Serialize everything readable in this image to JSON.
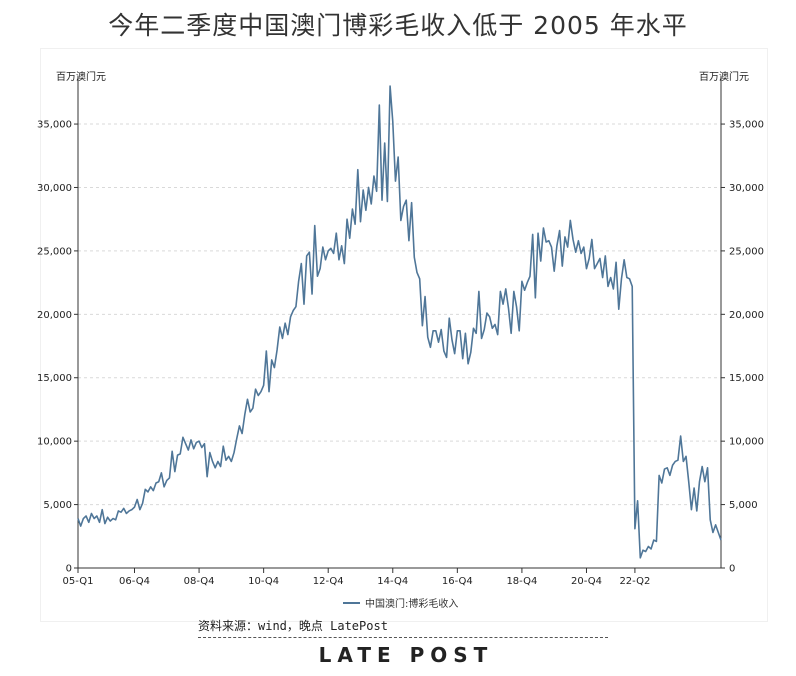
{
  "title": "今年二季度中国澳门博彩毛收入低于 2005 年水平",
  "source": "资料来源：wind，晚点 LatePost",
  "brand": "LATE POST",
  "chart_data": {
    "type": "line",
    "y_unit_left": "百万澳门元",
    "y_unit_right": "百万澳门元",
    "ylim": [
      0,
      38000
    ],
    "yticks": [
      0,
      5000,
      10000,
      15000,
      20000,
      25000,
      30000,
      35000
    ],
    "ytick_labels": [
      "0",
      "5,000",
      "10,000",
      "15,000",
      "20,000",
      "25,000",
      "30,000",
      "35,000"
    ],
    "x_tick_labels": [
      "05-Q1",
      "06-Q4",
      "08-Q4",
      "10-Q4",
      "12-Q4",
      "14-Q4",
      "16-Q4",
      "18-Q4",
      "20-Q4",
      "22-Q2"
    ],
    "x_tick_months": [
      0,
      21,
      45,
      69,
      93,
      117,
      141,
      165,
      189,
      207
    ],
    "x_start": "2005-01",
    "x_end": "2022-06",
    "grid": true,
    "legend_position": "bottom-center",
    "series": [
      {
        "name": "中国澳门:博彩毛收入",
        "color": "#4f7698",
        "values": [
          3900,
          3300,
          3900,
          4100,
          3600,
          4300,
          3900,
          4100,
          3600,
          4600,
          3500,
          4000,
          3700,
          3900,
          3800,
          4500,
          4400,
          4700,
          4300,
          4500,
          4600,
          4800,
          5400,
          4600,
          5100,
          6200,
          6000,
          6400,
          6100,
          6700,
          6800,
          7500,
          6400,
          6900,
          7100,
          9200,
          7600,
          8900,
          9000,
          10300,
          9800,
          9300,
          10100,
          9400,
          9900,
          10000,
          9500,
          9800,
          7200,
          9100,
          8400,
          7900,
          8400,
          8000,
          9600,
          8500,
          8800,
          8400,
          9100,
          10200,
          11200,
          10600,
          12100,
          13300,
          12300,
          12600,
          14100,
          13600,
          13900,
          14400,
          17100,
          13900,
          16400,
          15800,
          17200,
          19000,
          18100,
          19300,
          18400,
          19800,
          20300,
          20600,
          22600,
          24000,
          20800,
          24600,
          24900,
          21600,
          27000,
          23000,
          23600,
          25300,
          24300,
          25000,
          25200,
          24800,
          26400,
          24300,
          25400,
          24000,
          27500,
          26000,
          28300,
          27100,
          31400,
          27300,
          29800,
          28200,
          30000,
          28700,
          30900,
          29700,
          36500,
          29000,
          33500,
          28900,
          38000,
          35200,
          30500,
          32400,
          27400,
          28500,
          29000,
          25800,
          28800,
          24500,
          23300,
          22800,
          19100,
          21400,
          18200,
          17400,
          18700,
          18700,
          17800,
          18800,
          17100,
          16600,
          19700,
          18000,
          16900,
          18700,
          18700,
          16500,
          18500,
          16100,
          17000,
          18900,
          18500,
          21800,
          18100,
          18800,
          20100,
          19800,
          18900,
          19200,
          18400,
          21800,
          20800,
          22000,
          20500,
          18500,
          21800,
          20600,
          18700,
          22600,
          21900,
          22500,
          23000,
          26300,
          21300,
          26400,
          24200,
          26800,
          25700,
          25800,
          25300,
          23400,
          25400,
          26600,
          23800,
          26100,
          25300,
          27400,
          25900,
          24900,
          25800,
          24800,
          25300,
          23600,
          24400,
          25900,
          23600,
          24000,
          24400,
          22900,
          24600,
          22200,
          22900,
          22000,
          24100,
          20400,
          22800,
          24300,
          22900,
          22800,
          22200,
          3100,
          5300,
          800,
          1400,
          1300,
          1700,
          1500,
          2200,
          2100,
          7300,
          6700,
          7800,
          7900,
          7300,
          8100,
          8400,
          8500,
          10400,
          8400,
          8800,
          6800,
          4600,
          6300,
          4500,
          6800,
          8000,
          6800,
          7900,
          3800,
          2800,
          3400,
          2800,
          2200
        ]
      }
    ]
  }
}
